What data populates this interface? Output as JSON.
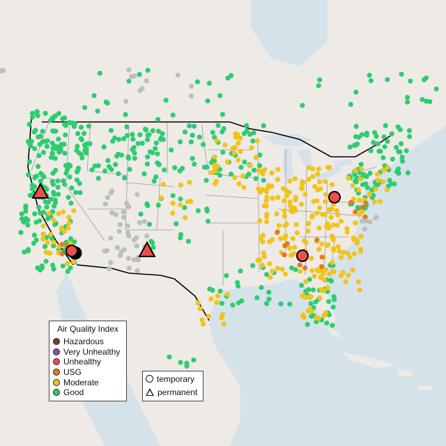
{
  "colors": {
    "hazardous": "#7e3b2a",
    "very_unhealthy": "#8f4fa8",
    "unhealthy": "#e9504a",
    "usg": "#e47a1f",
    "moderate": "#f0c419",
    "good": "#2ecc71",
    "no_data": "#bdbdbd",
    "land": "#eeeae6",
    "water": "#d6e2ea"
  },
  "legend_aqi": {
    "title": "Air Quality Index",
    "items": [
      {
        "key": "hazardous",
        "label": "Hazardous"
      },
      {
        "key": "very_unhealthy",
        "label": "Very Unhealthy"
      },
      {
        "key": "unhealthy",
        "label": "Unhealthy"
      },
      {
        "key": "usg",
        "label": "USG"
      },
      {
        "key": "moderate",
        "label": "Moderate"
      },
      {
        "key": "good",
        "label": "Good"
      }
    ]
  },
  "legend_type": {
    "items": [
      {
        "shape": "circle-icon",
        "label": "temporary"
      },
      {
        "shape": "triangle-icon",
        "label": "permanent"
      }
    ]
  }
}
